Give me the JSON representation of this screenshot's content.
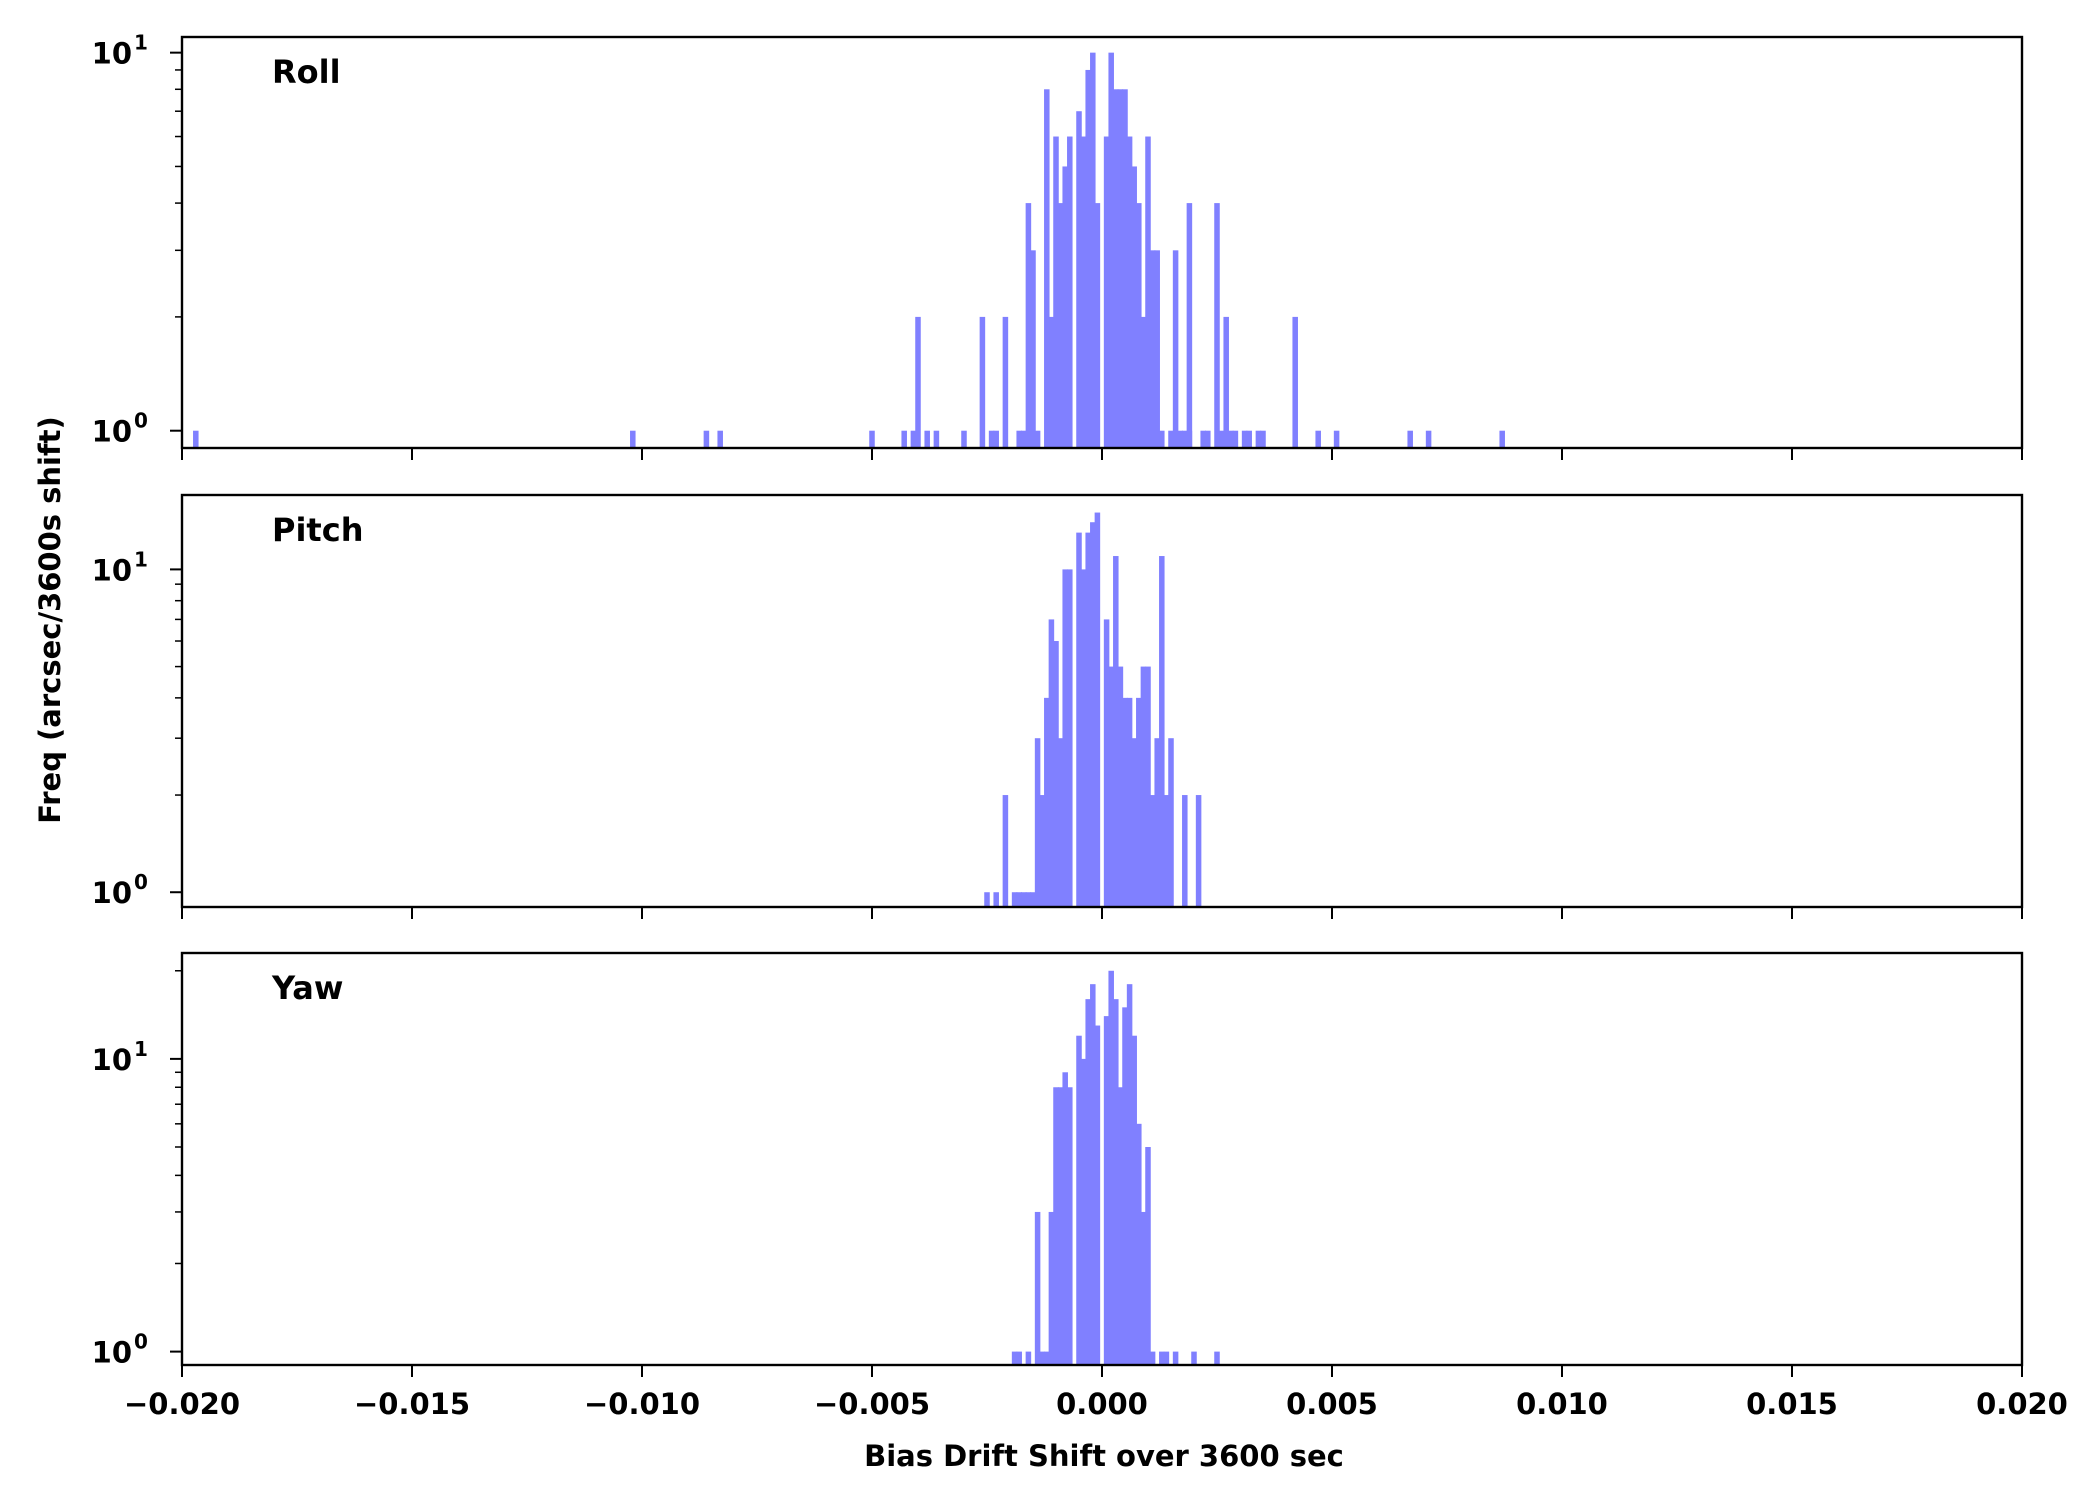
{
  "chart_data": {
    "type": "bar",
    "title": "",
    "xlabel": "Bias Drift Shift over 3600 sec",
    "ylabel": "Freq (arcsec/3600s shift)",
    "xlim": [
      -0.02,
      0.02
    ],
    "x_ticks": [
      "−0.020",
      "−0.015",
      "−0.010",
      "−0.005",
      "0.000",
      "0.005",
      "0.010",
      "0.015",
      "0.020"
    ],
    "x_tick_values": [
      -0.02,
      -0.015,
      -0.01,
      -0.005,
      0.0,
      0.005,
      0.01,
      0.015,
      0.02
    ],
    "y_scale": "log",
    "y_tick_base": "10",
    "y_tick_exponents": [
      "0",
      "1"
    ],
    "bar_color": "#8080ff",
    "grid": false,
    "panels": [
      {
        "name": "Roll",
        "ylim": [
          0.9,
          11
        ],
        "bins": [
          {
            "x": -0.0197,
            "y": 1
          },
          {
            "x": -0.0102,
            "y": 1
          },
          {
            "x": -0.0086,
            "y": 1
          },
          {
            "x": -0.0083,
            "y": 1
          },
          {
            "x": -0.005,
            "y": 1
          },
          {
            "x": -0.0043,
            "y": 1
          },
          {
            "x": -0.0041,
            "y": 1
          },
          {
            "x": -0.004,
            "y": 2
          },
          {
            "x": -0.0038,
            "y": 1
          },
          {
            "x": -0.0036,
            "y": 1
          },
          {
            "x": -0.003,
            "y": 1
          },
          {
            "x": -0.0026,
            "y": 2
          },
          {
            "x": -0.0024,
            "y": 1
          },
          {
            "x": -0.0023,
            "y": 1
          },
          {
            "x": -0.0021,
            "y": 2
          },
          {
            "x": -0.0018,
            "y": 1
          },
          {
            "x": -0.0017,
            "y": 1
          },
          {
            "x": -0.0016,
            "y": 4
          },
          {
            "x": -0.0015,
            "y": 3
          },
          {
            "x": -0.0014,
            "y": 1
          },
          {
            "x": -0.0012,
            "y": 8
          },
          {
            "x": -0.0011,
            "y": 2
          },
          {
            "x": -0.001,
            "y": 6
          },
          {
            "x": -0.0009,
            "y": 4
          },
          {
            "x": -0.0008,
            "y": 5
          },
          {
            "x": -0.0007,
            "y": 6
          },
          {
            "x": -0.0005,
            "y": 7
          },
          {
            "x": -0.0004,
            "y": 6
          },
          {
            "x": -0.0003,
            "y": 9
          },
          {
            "x": -0.0002,
            "y": 10
          },
          {
            "x": -0.0001,
            "y": 4
          },
          {
            "x": 0.0001,
            "y": 6
          },
          {
            "x": 0.0002,
            "y": 10
          },
          {
            "x": 0.0003,
            "y": 8
          },
          {
            "x": 0.0004,
            "y": 8
          },
          {
            "x": 0.0005,
            "y": 8
          },
          {
            "x": 0.0006,
            "y": 6
          },
          {
            "x": 0.0007,
            "y": 5
          },
          {
            "x": 0.0008,
            "y": 4
          },
          {
            "x": 0.0009,
            "y": 2
          },
          {
            "x": 0.001,
            "y": 6
          },
          {
            "x": 0.0011,
            "y": 3
          },
          {
            "x": 0.0012,
            "y": 3
          },
          {
            "x": 0.0013,
            "y": 1
          },
          {
            "x": 0.0015,
            "y": 1
          },
          {
            "x": 0.0016,
            "y": 3
          },
          {
            "x": 0.0017,
            "y": 1
          },
          {
            "x": 0.0018,
            "y": 1
          },
          {
            "x": 0.0019,
            "y": 1
          },
          {
            "x": 0.0019,
            "y": 4
          },
          {
            "x": 0.0022,
            "y": 1
          },
          {
            "x": 0.0023,
            "y": 1
          },
          {
            "x": 0.0025,
            "y": 4
          },
          {
            "x": 0.0026,
            "y": 1
          },
          {
            "x": 0.0027,
            "y": 2
          },
          {
            "x": 0.0028,
            "y": 1
          },
          {
            "x": 0.0029,
            "y": 1
          },
          {
            "x": 0.0031,
            "y": 1
          },
          {
            "x": 0.0032,
            "y": 1
          },
          {
            "x": 0.0034,
            "y": 1
          },
          {
            "x": 0.0035,
            "y": 1
          },
          {
            "x": 0.0042,
            "y": 2
          },
          {
            "x": 0.0047,
            "y": 1
          },
          {
            "x": 0.0051,
            "y": 1
          },
          {
            "x": 0.0067,
            "y": 1
          },
          {
            "x": 0.0071,
            "y": 1
          },
          {
            "x": 0.0087,
            "y": 1
          }
        ]
      },
      {
        "name": "Pitch",
        "ylim": [
          0.9,
          17
        ],
        "bins": [
          {
            "x": -0.0025,
            "y": 1
          },
          {
            "x": -0.0023,
            "y": 1
          },
          {
            "x": -0.0021,
            "y": 2
          },
          {
            "x": -0.0019,
            "y": 1
          },
          {
            "x": -0.0018,
            "y": 1
          },
          {
            "x": -0.0017,
            "y": 1
          },
          {
            "x": -0.0016,
            "y": 1
          },
          {
            "x": -0.0015,
            "y": 1
          },
          {
            "x": -0.0014,
            "y": 3
          },
          {
            "x": -0.0013,
            "y": 2
          },
          {
            "x": -0.0012,
            "y": 4
          },
          {
            "x": -0.0011,
            "y": 7
          },
          {
            "x": -0.001,
            "y": 6
          },
          {
            "x": -0.0009,
            "y": 3
          },
          {
            "x": -0.0008,
            "y": 10
          },
          {
            "x": -0.0007,
            "y": 10
          },
          {
            "x": -0.0005,
            "y": 13
          },
          {
            "x": -0.0004,
            "y": 10
          },
          {
            "x": -0.0003,
            "y": 13
          },
          {
            "x": -0.0002,
            "y": 14
          },
          {
            "x": -0.0001,
            "y": 15
          },
          {
            "x": 0.0001,
            "y": 7
          },
          {
            "x": 0.0002,
            "y": 5
          },
          {
            "x": 0.0003,
            "y": 11
          },
          {
            "x": 0.0004,
            "y": 5
          },
          {
            "x": 0.0005,
            "y": 4
          },
          {
            "x": 0.0006,
            "y": 4
          },
          {
            "x": 0.0007,
            "y": 3
          },
          {
            "x": 0.0008,
            "y": 4
          },
          {
            "x": 0.0009,
            "y": 5
          },
          {
            "x": 0.001,
            "y": 5
          },
          {
            "x": 0.0011,
            "y": 2
          },
          {
            "x": 0.0012,
            "y": 3
          },
          {
            "x": 0.0013,
            "y": 11
          },
          {
            "x": 0.0014,
            "y": 2
          },
          {
            "x": 0.0015,
            "y": 3
          },
          {
            "x": 0.0018,
            "y": 2
          },
          {
            "x": 0.0021,
            "y": 2
          }
        ]
      },
      {
        "name": "Yaw",
        "ylim": [
          0.9,
          23
        ],
        "bins": [
          {
            "x": -0.0019,
            "y": 1
          },
          {
            "x": -0.0018,
            "y": 1
          },
          {
            "x": -0.0016,
            "y": 1
          },
          {
            "x": -0.0014,
            "y": 3
          },
          {
            "x": -0.0013,
            "y": 1
          },
          {
            "x": -0.0012,
            "y": 1
          },
          {
            "x": -0.0011,
            "y": 3
          },
          {
            "x": -0.001,
            "y": 8
          },
          {
            "x": -0.0009,
            "y": 8
          },
          {
            "x": -0.0008,
            "y": 9
          },
          {
            "x": -0.0007,
            "y": 8
          },
          {
            "x": -0.0005,
            "y": 12
          },
          {
            "x": -0.0004,
            "y": 10
          },
          {
            "x": -0.0003,
            "y": 16
          },
          {
            "x": -0.0002,
            "y": 18
          },
          {
            "x": -0.0001,
            "y": 13
          },
          {
            "x": 0.0001,
            "y": 14
          },
          {
            "x": 0.0002,
            "y": 20
          },
          {
            "x": 0.0003,
            "y": 16
          },
          {
            "x": 0.0004,
            "y": 8
          },
          {
            "x": 0.0005,
            "y": 15
          },
          {
            "x": 0.0006,
            "y": 18
          },
          {
            "x": 0.0007,
            "y": 12
          },
          {
            "x": 0.0008,
            "y": 6
          },
          {
            "x": 0.0009,
            "y": 3
          },
          {
            "x": 0.001,
            "y": 5
          },
          {
            "x": 0.0011,
            "y": 1
          },
          {
            "x": 0.0013,
            "y": 1
          },
          {
            "x": 0.0014,
            "y": 1
          },
          {
            "x": 0.0016,
            "y": 1
          },
          {
            "x": 0.002,
            "y": 1
          },
          {
            "x": 0.0025,
            "y": 1
          }
        ]
      }
    ]
  }
}
